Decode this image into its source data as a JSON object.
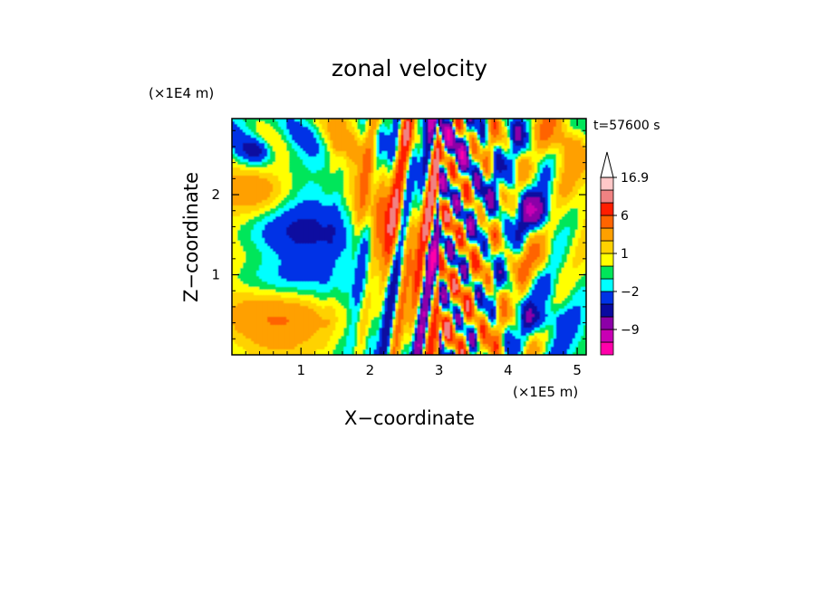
{
  "chart_data": {
    "type": "heatmap",
    "title": "zonal velocity",
    "xlabel": "X−coordinate",
    "ylabel": "Z−coordinate",
    "x_unit": "(×1E5 m)",
    "y_unit": "(×1E4 m)",
    "time_label": "t=57600 s",
    "xlim": [
      0,
      5.13
    ],
    "ylim": [
      0,
      2.95
    ],
    "x_ticks": [
      1,
      2,
      3,
      4,
      5
    ],
    "y_ticks": [
      1,
      2
    ],
    "x_tick_labels": [
      "1",
      "2",
      "3",
      "4",
      "5"
    ],
    "y_tick_labels": [
      "1",
      "2"
    ],
    "grid": false,
    "colorbar": {
      "position": "right",
      "levels": [
        -15,
        -12,
        -9,
        -6,
        -4,
        -2,
        -1,
        0,
        1,
        2,
        4,
        6,
        9,
        12,
        16.9
      ],
      "colors": [
        "#ff00aa",
        "#c800b4",
        "#8c00a8",
        "#0a0aa0",
        "#0033e6",
        "#00ffff",
        "#00e65a",
        "#ffff00",
        "#ffd200",
        "#ffa000",
        "#ff6400",
        "#ff1e00",
        "#f08282",
        "#ffc8c8"
      ],
      "labels": [
        "16.9",
        "6",
        "1",
        "−2",
        "−9"
      ],
      "label_values": [
        16.9,
        6,
        1,
        -2,
        -9
      ],
      "extend": "max"
    }
  }
}
